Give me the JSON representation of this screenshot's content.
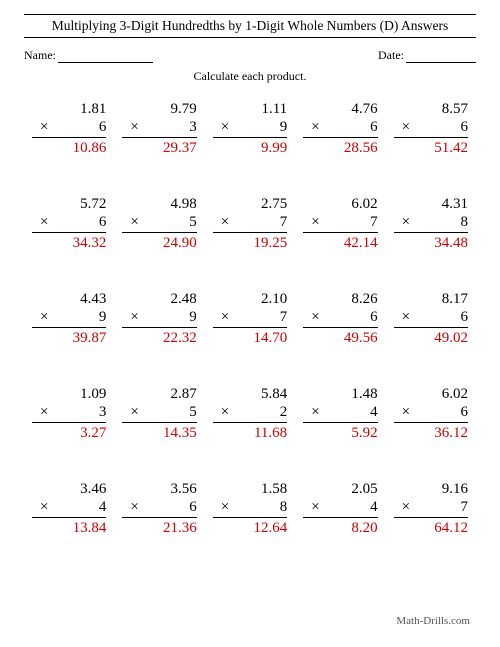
{
  "title": "Multiplying 3-Digit Hundredths by 1-Digit Whole Numbers (D) Answers",
  "name_label": "Name:",
  "date_label": "Date:",
  "instruction": "Calculate each product.",
  "footer": "Math-Drills.com",
  "multiply_symbol": "×",
  "colors": {
    "answer": "#d00000",
    "text": "#000000",
    "background": "#ffffff"
  },
  "problems": [
    {
      "a": "1.81",
      "b": "6",
      "ans": "10.86"
    },
    {
      "a": "9.79",
      "b": "3",
      "ans": "29.37"
    },
    {
      "a": "1.11",
      "b": "9",
      "ans": "9.99"
    },
    {
      "a": "4.76",
      "b": "6",
      "ans": "28.56"
    },
    {
      "a": "8.57",
      "b": "6",
      "ans": "51.42"
    },
    {
      "a": "5.72",
      "b": "6",
      "ans": "34.32"
    },
    {
      "a": "4.98",
      "b": "5",
      "ans": "24.90"
    },
    {
      "a": "2.75",
      "b": "7",
      "ans": "19.25"
    },
    {
      "a": "6.02",
      "b": "7",
      "ans": "42.14"
    },
    {
      "a": "4.31",
      "b": "8",
      "ans": "34.48"
    },
    {
      "a": "4.43",
      "b": "9",
      "ans": "39.87"
    },
    {
      "a": "2.48",
      "b": "9",
      "ans": "22.32"
    },
    {
      "a": "2.10",
      "b": "7",
      "ans": "14.70"
    },
    {
      "a": "8.26",
      "b": "6",
      "ans": "49.56"
    },
    {
      "a": "8.17",
      "b": "6",
      "ans": "49.02"
    },
    {
      "a": "1.09",
      "b": "3",
      "ans": "3.27"
    },
    {
      "a": "2.87",
      "b": "5",
      "ans": "14.35"
    },
    {
      "a": "5.84",
      "b": "2",
      "ans": "11.68"
    },
    {
      "a": "1.48",
      "b": "4",
      "ans": "5.92"
    },
    {
      "a": "6.02",
      "b": "6",
      "ans": "36.12"
    },
    {
      "a": "3.46",
      "b": "4",
      "ans": "13.84"
    },
    {
      "a": "3.56",
      "b": "6",
      "ans": "21.36"
    },
    {
      "a": "1.58",
      "b": "8",
      "ans": "12.64"
    },
    {
      "a": "2.05",
      "b": "4",
      "ans": "8.20"
    },
    {
      "a": "9.16",
      "b": "7",
      "ans": "64.12"
    }
  ]
}
